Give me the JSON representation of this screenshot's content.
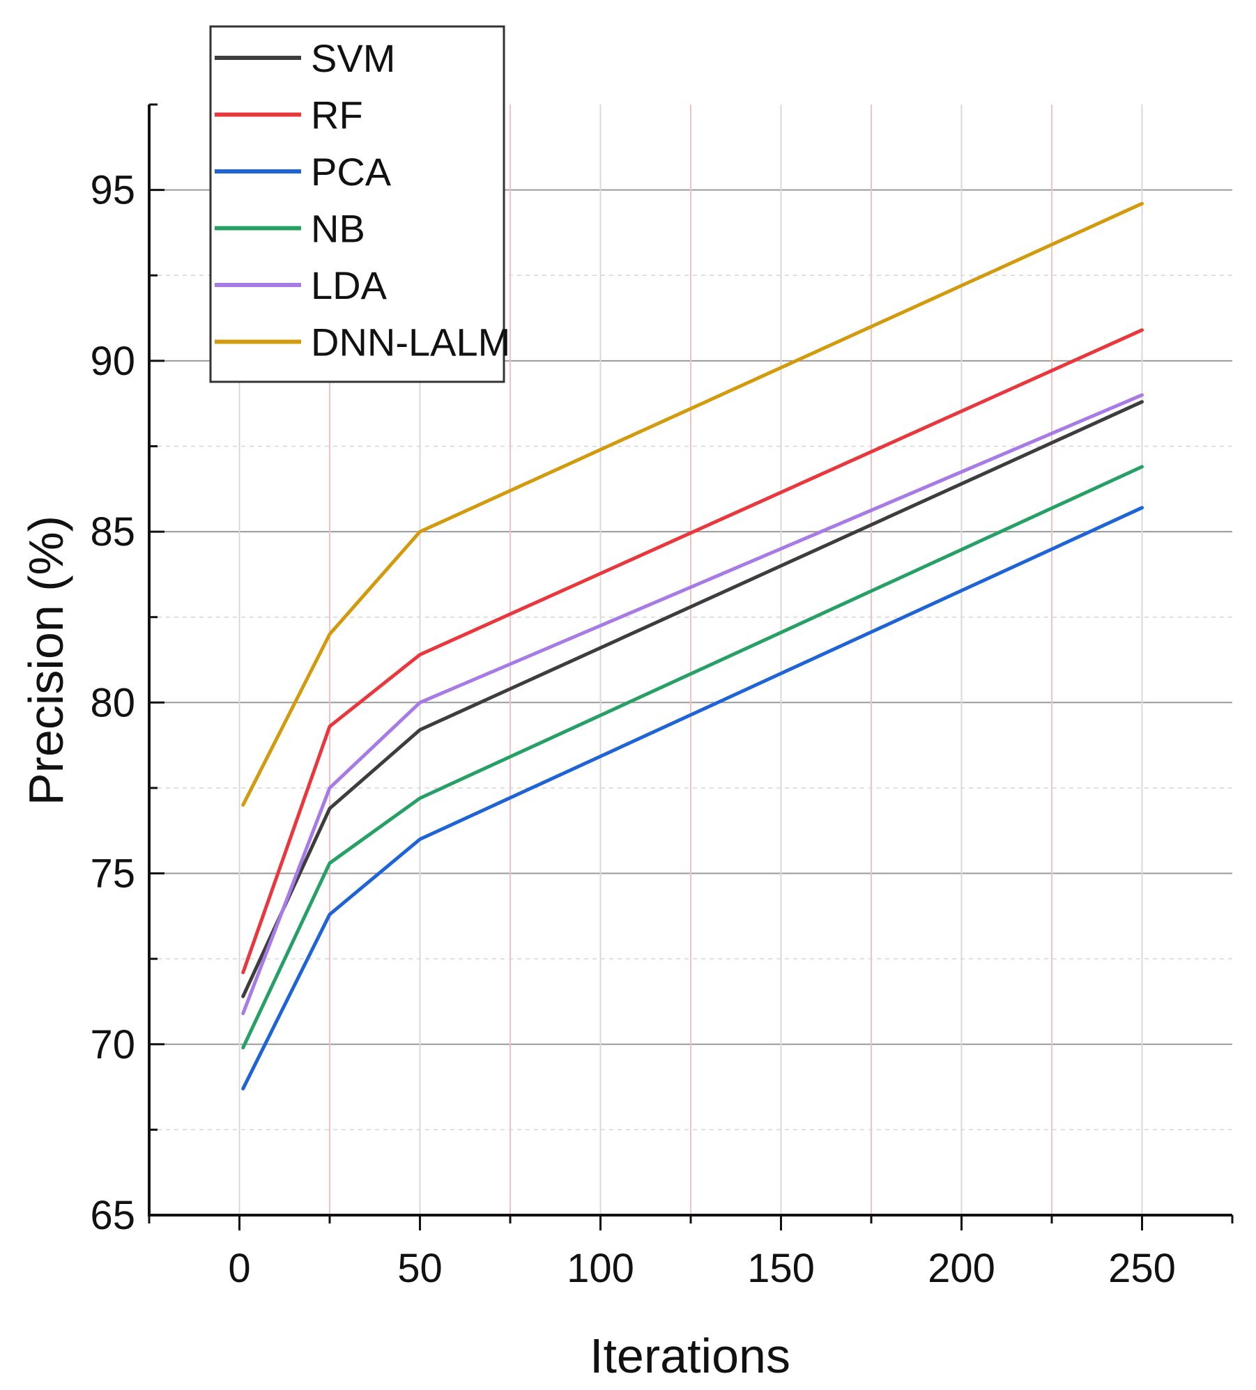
{
  "chart_data": {
    "type": "line",
    "title": "",
    "xlabel": "Iterations",
    "ylabel": "Precision (%)",
    "xlim": [
      -25,
      275
    ],
    "ylim": [
      65,
      97.5
    ],
    "xticks": [
      0,
      50,
      100,
      150,
      200,
      250
    ],
    "yticks": [
      65,
      70,
      75,
      80,
      85,
      90,
      95
    ],
    "grid": true,
    "legend_position": "top-left",
    "x": [
      1,
      25,
      50,
      250
    ],
    "series": [
      {
        "name": "SVM",
        "color": "#3d3d3d",
        "values": [
          71.4,
          76.9,
          79.2,
          88.8
        ]
      },
      {
        "name": "RF",
        "color": "#e8383d",
        "values": [
          72.1,
          79.3,
          81.4,
          90.9
        ]
      },
      {
        "name": "PCA",
        "color": "#1f64d6",
        "values": [
          68.7,
          73.8,
          76.0,
          85.7
        ]
      },
      {
        "name": "NB",
        "color": "#26a065",
        "values": [
          69.9,
          75.3,
          77.2,
          86.9
        ]
      },
      {
        "name": "LDA",
        "color": "#a77be6",
        "values": [
          70.9,
          77.5,
          80.0,
          89.0
        ]
      },
      {
        "name": "DNN-LALM",
        "color": "#d29b0d",
        "values": [
          77.0,
          82.0,
          85.0,
          94.6
        ]
      }
    ]
  }
}
